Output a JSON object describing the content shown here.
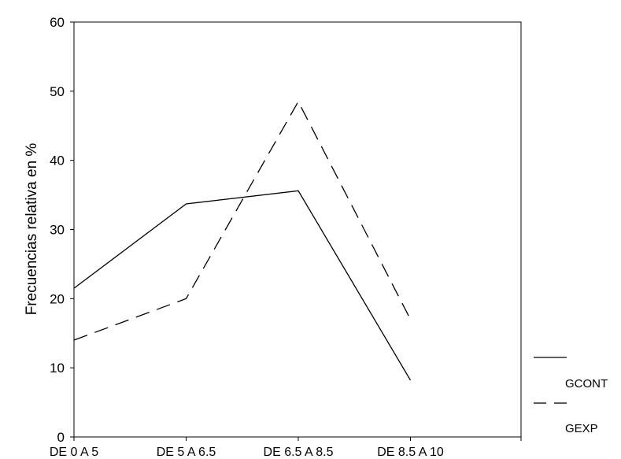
{
  "chart_data": {
    "type": "line",
    "title": "",
    "xlabel": "",
    "ylabel": "Frecuencias relativa en %",
    "categories": [
      "DE 0 A 5",
      "DE 5 A 6.5",
      "DE 6.5 A 8.5",
      "DE 8.5 A 10"
    ],
    "ylim": [
      0,
      60
    ],
    "yticks": [
      "0",
      "10",
      "20",
      "30",
      "40",
      "50",
      "60"
    ],
    "grid": false,
    "legend": "right",
    "series": [
      {
        "name": "GCONT",
        "values": [
          21.5,
          33.7,
          35.6,
          8.2
        ],
        "color": "#000000",
        "dash": "solid"
      },
      {
        "name": "GEXP",
        "values": [
          14.0,
          20.0,
          48.5,
          17.0
        ],
        "color": "#000000",
        "dash": "dashed"
      }
    ]
  }
}
